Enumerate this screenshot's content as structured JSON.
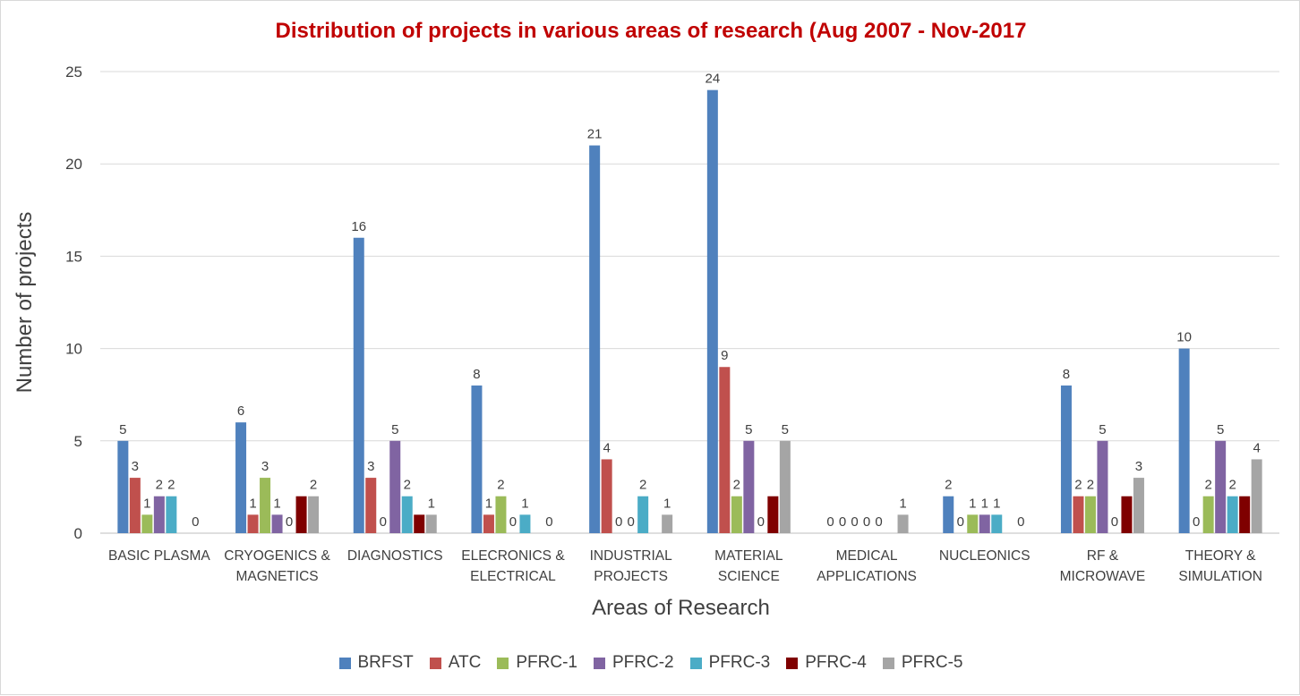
{
  "chart_data": {
    "type": "bar",
    "title": "Distribution of projects in various areas of research (Aug 2007 - Nov-2017",
    "xlabel": "Areas of Research",
    "ylabel": "Number of projects",
    "ylim": [
      0,
      25
    ],
    "yticks": [
      0,
      5,
      10,
      15,
      20,
      25
    ],
    "grid": true,
    "legend_position": "bottom",
    "categories": [
      [
        "BASIC PLASMA"
      ],
      [
        "CRYOGENICS &",
        "MAGNETICS"
      ],
      [
        "DIAGNOSTICS"
      ],
      [
        "ELECRONICS &",
        "ELECTRICAL"
      ],
      [
        "INDUSTRIAL",
        "PROJECTS"
      ],
      [
        "MATERIAL",
        "SCIENCE"
      ],
      [
        "MEDICAL",
        "APPLICATIONS"
      ],
      [
        "NUCLEONICS"
      ],
      [
        "RF &",
        "MICROWAVE"
      ],
      [
        "THEORY &",
        "SIMULATION"
      ]
    ],
    "series": [
      {
        "name": "BRFST",
        "color": "#4f81bd",
        "values": [
          5,
          6,
          16,
          8,
          21,
          24,
          0,
          2,
          8,
          10
        ],
        "labels": [
          "5",
          "6",
          "16",
          "8",
          "21",
          "24",
          "0",
          "2",
          "8",
          "10"
        ]
      },
      {
        "name": "ATC",
        "color": "#c0504d",
        "values": [
          3,
          1,
          3,
          1,
          4,
          9,
          0,
          0,
          2,
          0
        ],
        "labels": [
          "3",
          "1",
          "3",
          "1",
          "4",
          "9",
          "0",
          "0",
          "2",
          "0"
        ]
      },
      {
        "name": "PFRC-1",
        "color": "#9bbb59",
        "values": [
          1,
          3,
          0,
          2,
          0,
          2,
          0,
          1,
          2,
          2
        ],
        "labels": [
          "1",
          "3",
          "0",
          "2",
          "0",
          "2",
          "0",
          "1",
          "2",
          "2"
        ]
      },
      {
        "name": "PFRC-2",
        "color": "#8064a2",
        "values": [
          2,
          1,
          5,
          0,
          0,
          5,
          0,
          1,
          5,
          5
        ],
        "labels": [
          "2",
          "1",
          "5",
          "0",
          "0",
          "5",
          "0",
          "1",
          "5",
          "5"
        ]
      },
      {
        "name": "PFRC-3",
        "color": "#4bacc6",
        "values": [
          2,
          0,
          2,
          1,
          2,
          0,
          0,
          1,
          0,
          2
        ],
        "labels": [
          "2",
          "0",
          "2",
          "1",
          "2",
          "0",
          "0",
          "1",
          "0",
          "2"
        ]
      },
      {
        "name": "PFRC-4",
        "color": "#7f0000",
        "values": [
          0,
          2,
          1,
          0,
          0,
          2,
          0,
          0,
          2,
          2
        ],
        "labels": [
          "",
          "",
          "",
          "",
          "",
          "",
          "",
          "",
          "",
          ""
        ]
      },
      {
        "name": "PFRC-5",
        "color": "#a5a5a5",
        "values": [
          0,
          2,
          1,
          0,
          1,
          5,
          1,
          0,
          3,
          4
        ],
        "labels": [
          "0",
          "2",
          "1",
          "0",
          "1",
          "5",
          "1",
          "0",
          "3",
          "4"
        ]
      }
    ],
    "title_color": "#c00000",
    "ylabel_color": "#404040",
    "xlabel_color": "#404040"
  }
}
